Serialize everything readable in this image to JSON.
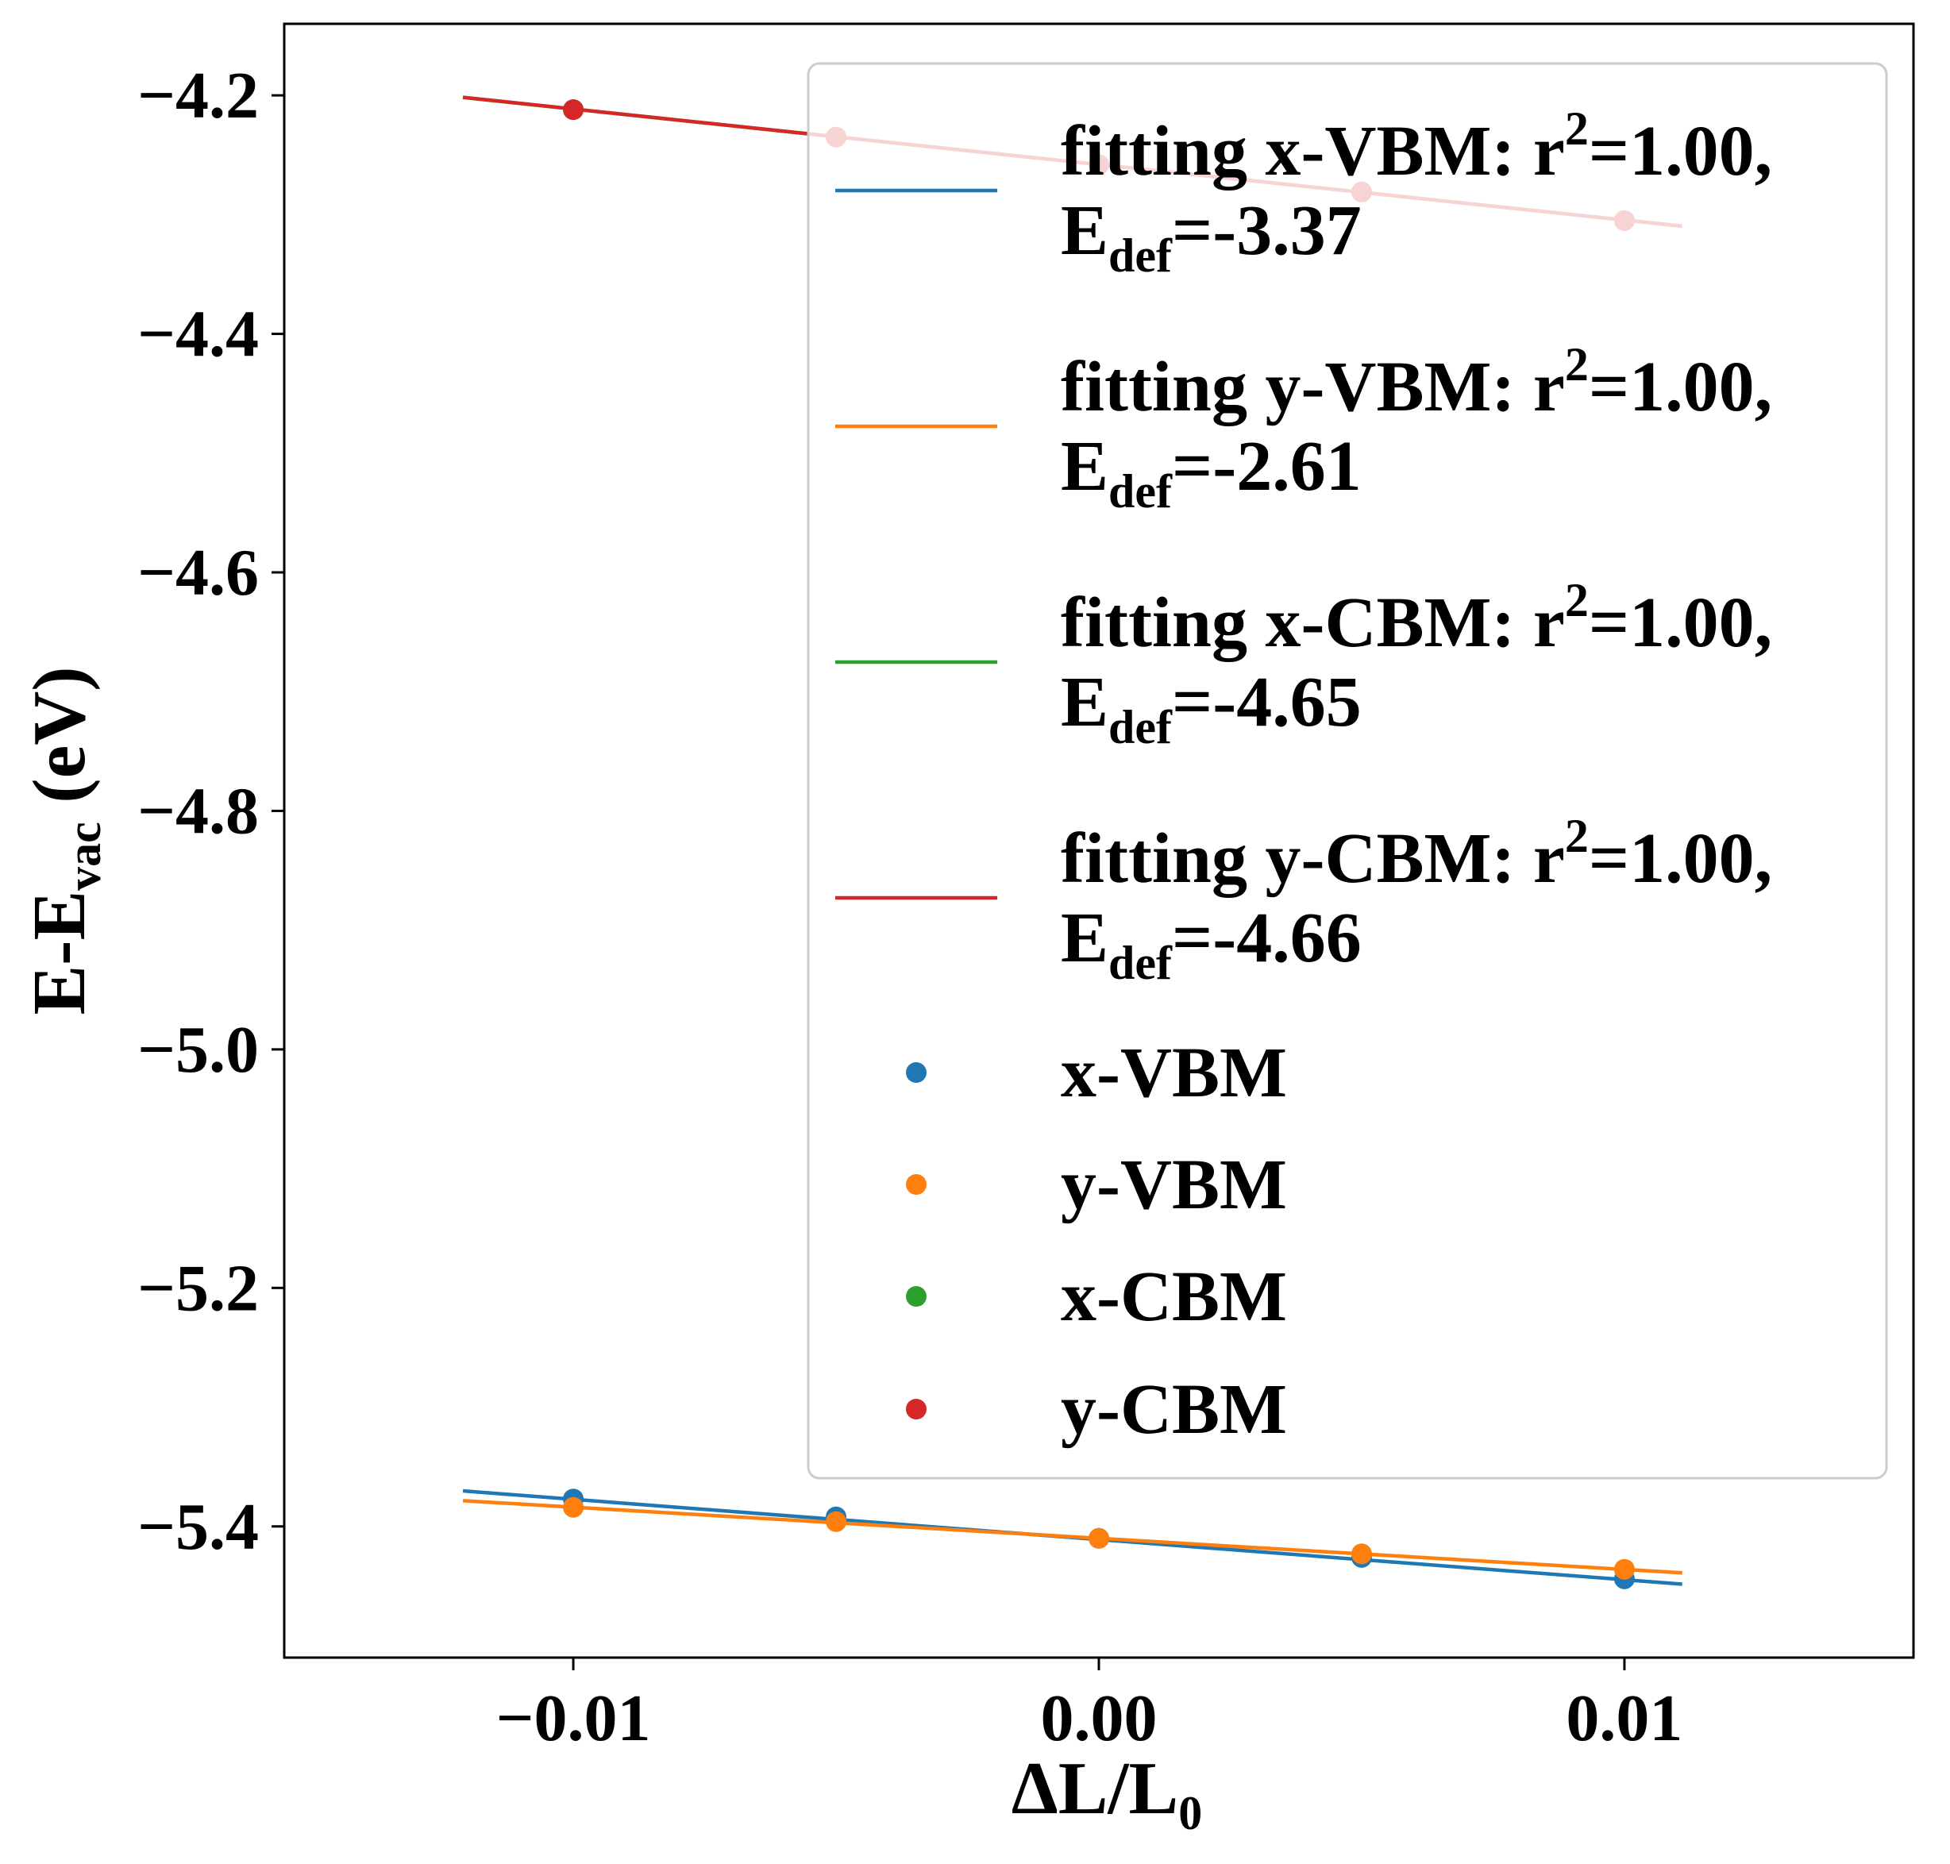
{
  "chart_data": {
    "type": "scatter",
    "xlabel": {
      "main": "ΔL/L",
      "sub": "0"
    },
    "ylabel": {
      "main": "E-E",
      "sub": "vac",
      "unit": " (eV)"
    },
    "xlim": [
      -0.0155,
      0.0155
    ],
    "ylim": [
      -5.51,
      -4.14
    ],
    "xticks": [
      -0.01,
      0.0,
      0.01
    ],
    "xtick_labels": [
      "−0.01",
      "0.00",
      "0.01"
    ],
    "yticks": [
      -4.2,
      -4.4,
      -4.6,
      -4.8,
      -5.0,
      -5.2,
      -5.4
    ],
    "ytick_labels": [
      "−4.2",
      "−4.4",
      "−4.6",
      "−4.8",
      "−5.0",
      "−5.2",
      "−5.4"
    ],
    "grid": false,
    "legend_position": "upper right",
    "fits": [
      {
        "line1": "fitting x-VBM: r",
        "sup": "2",
        "line1_end": "=1.00,",
        "line2": "E",
        "sub": "def",
        "line2_end": "=-3.37",
        "color": "#1f77b4",
        "slope": -3.37,
        "intercept": -5.411,
        "x_range": [
          -0.0121,
          0.0111
        ]
      },
      {
        "line1": "fitting y-VBM: r",
        "sup": "2",
        "line1_end": "=1.00,",
        "line2": "E",
        "sub": "def",
        "line2_end": "=-2.61",
        "color": "#ff7f0e",
        "slope": -2.61,
        "intercept": -5.41,
        "x_range": [
          -0.0121,
          0.0111
        ]
      },
      {
        "line1": "fitting x-CBM: r",
        "sup": "2",
        "line1_end": "=1.00,",
        "line2": "E",
        "sub": "def",
        "line2_end": "=-4.65",
        "color": "#2ca02c",
        "slope": -4.65,
        "intercept": -4.258,
        "x_range": [
          -0.0121,
          0.0111
        ]
      },
      {
        "line1": "fitting y-CBM: r",
        "sup": "2",
        "line1_end": "=1.00,",
        "line2": "E",
        "sub": "def",
        "line2_end": "=-4.66",
        "color": "#d62728",
        "slope": -4.66,
        "intercept": -4.258,
        "x_range": [
          -0.0121,
          0.0111
        ]
      }
    ],
    "series": [
      {
        "name": "x-VBM",
        "color": "#1f77b4",
        "x": [
          -0.01,
          -0.005,
          0.0,
          0.005,
          0.01
        ],
        "y": [
          -5.377,
          -5.392,
          -5.41,
          -5.426,
          -5.444
        ]
      },
      {
        "name": "y-VBM",
        "color": "#ff7f0e",
        "x": [
          -0.01,
          -0.005,
          0.0,
          0.005,
          0.01
        ],
        "y": [
          -5.384,
          -5.396,
          -5.41,
          -5.423,
          -5.436
        ]
      },
      {
        "name": "x-CBM",
        "color": "#2ca02c",
        "x": [
          -0.01,
          -0.005,
          0.0,
          0.005,
          0.01
        ],
        "y": [
          -4.212,
          -4.235,
          -4.258,
          -4.281,
          -4.305
        ]
      },
      {
        "name": "y-CBM",
        "color": "#d62728",
        "x": [
          -0.01,
          -0.005,
          0.0,
          0.005,
          0.01
        ],
        "y": [
          -4.212,
          -4.235,
          -4.258,
          -4.281,
          -4.305
        ]
      }
    ]
  }
}
